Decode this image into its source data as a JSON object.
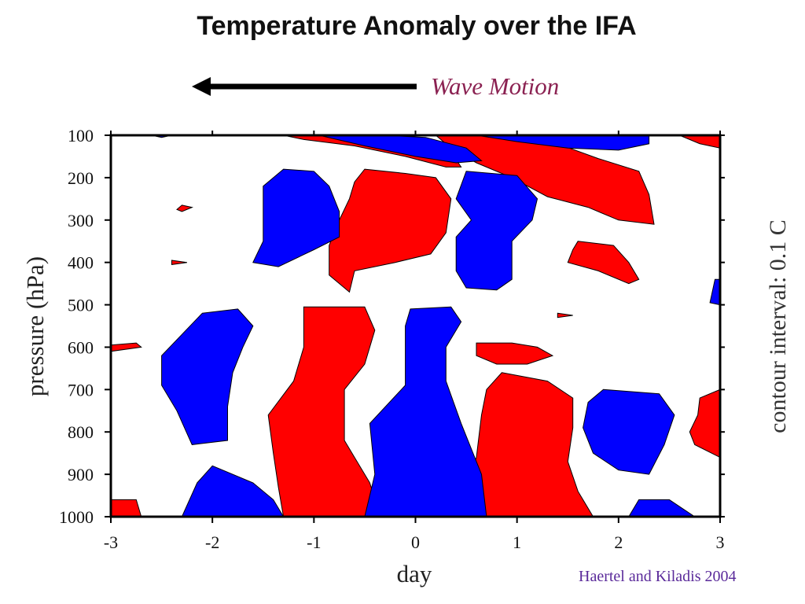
{
  "title": "Temperature Anomaly over the IFA",
  "annotation": {
    "wave_motion": "Wave Motion",
    "arrow_direction": "left"
  },
  "contour_interval": "contour interval: 0.1 C",
  "citation": "Haertel and Kiladis 2004",
  "colors": {
    "warm": "#ff0000",
    "cold": "#0000ff",
    "arrow": "#000000",
    "wave_text": "#8b2252",
    "citation": "#5a2a9a"
  },
  "chart_data": {
    "type": "heatmap",
    "title": "Temperature Anomaly over the IFA",
    "xlabel": "day",
    "ylabel": "pressure (hPa)",
    "xlim": [
      -3,
      3
    ],
    "ylim": [
      100,
      1000
    ],
    "y_inverted": true,
    "x_ticks": [
      "-3",
      "-2",
      "-1",
      "0",
      "1",
      "2",
      "3"
    ],
    "y_ticks": [
      "100",
      "200",
      "300",
      "400",
      "500",
      "600",
      "700",
      "800",
      "900",
      "1000"
    ],
    "contour_interval_C": 0.1,
    "legend": "none",
    "regions": [
      {
        "sign": "warm",
        "poly": [
          [
            -1.0,
            100
          ],
          [
            -0.5,
            105
          ],
          [
            0.0,
            115
          ],
          [
            0.35,
            140
          ],
          [
            0.45,
            175
          ],
          [
            0.3,
            175
          ],
          [
            -0.1,
            150
          ],
          [
            -0.6,
            125
          ],
          [
            -1.1,
            110
          ],
          [
            -1.3,
            100
          ]
        ]
      },
      {
        "sign": "warm",
        "poly": [
          [
            0.2,
            100
          ],
          [
            0.9,
            100
          ],
          [
            1.4,
            120
          ],
          [
            1.8,
            155
          ],
          [
            2.2,
            185
          ],
          [
            2.3,
            240
          ],
          [
            2.35,
            310
          ],
          [
            2.0,
            300
          ],
          [
            1.7,
            270
          ],
          [
            1.3,
            245
          ],
          [
            0.95,
            200
          ],
          [
            0.6,
            165
          ],
          [
            0.35,
            130
          ]
        ]
      },
      {
        "sign": "warm",
        "poly": [
          [
            2.6,
            100
          ],
          [
            3.0,
            100
          ],
          [
            3.0,
            130
          ],
          [
            2.8,
            120
          ]
        ]
      },
      {
        "sign": "warm",
        "poly": [
          [
            -0.5,
            180
          ],
          [
            -0.1,
            190
          ],
          [
            0.2,
            200
          ],
          [
            0.35,
            250
          ],
          [
            0.3,
            330
          ],
          [
            0.15,
            380
          ],
          [
            -0.2,
            400
          ],
          [
            -0.6,
            420
          ],
          [
            -0.65,
            470
          ],
          [
            -0.7,
            460
          ],
          [
            -0.85,
            430
          ],
          [
            -0.85,
            360
          ],
          [
            -0.75,
            300
          ],
          [
            -0.65,
            250
          ],
          [
            -0.6,
            210
          ]
        ]
      },
      {
        "sign": "warm",
        "poly": [
          [
            1.6,
            350
          ],
          [
            1.95,
            360
          ],
          [
            2.1,
            400
          ],
          [
            2.2,
            440
          ],
          [
            2.1,
            450
          ],
          [
            1.8,
            420
          ],
          [
            1.5,
            400
          ],
          [
            1.55,
            370
          ]
        ]
      },
      {
        "sign": "warm",
        "poly": [
          [
            -2.3,
            265
          ],
          [
            -2.2,
            270
          ],
          [
            -2.3,
            280
          ],
          [
            -2.35,
            275
          ]
        ]
      },
      {
        "sign": "warm",
        "poly": [
          [
            -2.4,
            395
          ],
          [
            -2.25,
            400
          ],
          [
            -2.4,
            405
          ]
        ]
      },
      {
        "sign": "warm",
        "poly": [
          [
            -1.1,
            505
          ],
          [
            -0.5,
            505
          ],
          [
            -0.4,
            560
          ],
          [
            -0.5,
            640
          ],
          [
            -0.7,
            700
          ],
          [
            -0.7,
            820
          ],
          [
            -0.6,
            860
          ],
          [
            -0.45,
            920
          ],
          [
            -0.35,
            1000
          ],
          [
            -1.3,
            1000
          ],
          [
            -1.35,
            930
          ],
          [
            -1.4,
            850
          ],
          [
            -1.45,
            760
          ],
          [
            -1.2,
            680
          ],
          [
            -1.1,
            600
          ]
        ]
      },
      {
        "sign": "warm",
        "poly": [
          [
            0.6,
            590
          ],
          [
            0.95,
            590
          ],
          [
            1.2,
            600
          ],
          [
            1.35,
            620
          ],
          [
            1.1,
            640
          ],
          [
            0.8,
            640
          ],
          [
            0.6,
            620
          ]
        ]
      },
      {
        "sign": "warm",
        "poly": [
          [
            0.85,
            660
          ],
          [
            1.3,
            680
          ],
          [
            1.55,
            720
          ],
          [
            1.55,
            790
          ],
          [
            1.5,
            870
          ],
          [
            1.6,
            940
          ],
          [
            1.75,
            1000
          ],
          [
            0.5,
            1000
          ],
          [
            0.5,
            930
          ],
          [
            0.6,
            860
          ],
          [
            0.65,
            760
          ],
          [
            0.7,
            700
          ]
        ]
      },
      {
        "sign": "warm",
        "poly": [
          [
            1.4,
            520
          ],
          [
            1.55,
            525
          ],
          [
            1.4,
            530
          ]
        ]
      },
      {
        "sign": "warm",
        "poly": [
          [
            2.8,
            720
          ],
          [
            3.0,
            700
          ],
          [
            3.0,
            860
          ],
          [
            2.75,
            830
          ],
          [
            2.7,
            800
          ],
          [
            2.78,
            760
          ]
        ]
      },
      {
        "sign": "warm",
        "poly": [
          [
            -3.0,
            595
          ],
          [
            -2.75,
            590
          ],
          [
            -2.7,
            600
          ],
          [
            -3.0,
            610
          ]
        ]
      },
      {
        "sign": "warm",
        "poly": [
          [
            -3.0,
            960
          ],
          [
            -2.75,
            960
          ],
          [
            -2.7,
            1000
          ],
          [
            -3.0,
            1000
          ]
        ]
      },
      {
        "sign": "cold",
        "poly": [
          [
            -0.95,
            100
          ],
          [
            -0.3,
            100
          ],
          [
            0.1,
            105
          ],
          [
            0.5,
            130
          ],
          [
            0.65,
            160
          ],
          [
            0.4,
            165
          ],
          [
            0.0,
            150
          ],
          [
            -0.5,
            125
          ]
        ]
      },
      {
        "sign": "cold",
        "poly": [
          [
            0.6,
            100
          ],
          [
            2.3,
            100
          ],
          [
            2.3,
            120
          ],
          [
            2.0,
            135
          ],
          [
            1.5,
            130
          ],
          [
            1.0,
            115
          ]
        ]
      },
      {
        "sign": "cold",
        "poly": [
          [
            -2.6,
            100
          ],
          [
            -2.4,
            100
          ],
          [
            -2.5,
            105
          ]
        ]
      },
      {
        "sign": "cold",
        "poly": [
          [
            -1.3,
            180
          ],
          [
            -1.0,
            185
          ],
          [
            -0.85,
            220
          ],
          [
            -0.75,
            280
          ],
          [
            -0.75,
            340
          ],
          [
            -1.0,
            370
          ],
          [
            -1.35,
            410
          ],
          [
            -1.6,
            400
          ],
          [
            -1.5,
            350
          ],
          [
            -1.5,
            280
          ],
          [
            -1.5,
            220
          ]
        ]
      },
      {
        "sign": "cold",
        "poly": [
          [
            0.5,
            185
          ],
          [
            1.0,
            195
          ],
          [
            1.2,
            250
          ],
          [
            1.15,
            300
          ],
          [
            0.95,
            350
          ],
          [
            0.95,
            440
          ],
          [
            0.8,
            465
          ],
          [
            0.5,
            460
          ],
          [
            0.4,
            420
          ],
          [
            0.4,
            340
          ],
          [
            0.55,
            300
          ],
          [
            0.4,
            250
          ]
        ]
      },
      {
        "sign": "cold",
        "poly": [
          [
            -2.1,
            520
          ],
          [
            -1.75,
            510
          ],
          [
            -1.6,
            550
          ],
          [
            -1.7,
            600
          ],
          [
            -1.8,
            660
          ],
          [
            -1.85,
            740
          ],
          [
            -1.85,
            820
          ],
          [
            -2.2,
            830
          ],
          [
            -2.35,
            750
          ],
          [
            -2.5,
            690
          ],
          [
            -2.5,
            620
          ],
          [
            -2.3,
            570
          ]
        ]
      },
      {
        "sign": "cold",
        "poly": [
          [
            -0.05,
            510
          ],
          [
            0.35,
            505
          ],
          [
            0.45,
            540
          ],
          [
            0.3,
            600
          ],
          [
            0.3,
            680
          ],
          [
            0.45,
            780
          ],
          [
            0.65,
            900
          ],
          [
            0.7,
            1000
          ],
          [
            -0.5,
            1000
          ],
          [
            -0.4,
            900
          ],
          [
            -0.45,
            780
          ],
          [
            -0.1,
            690
          ],
          [
            -0.1,
            600
          ],
          [
            -0.1,
            550
          ]
        ]
      },
      {
        "sign": "cold",
        "poly": [
          [
            1.85,
            700
          ],
          [
            2.4,
            710
          ],
          [
            2.55,
            760
          ],
          [
            2.45,
            830
          ],
          [
            2.3,
            900
          ],
          [
            2.0,
            890
          ],
          [
            1.75,
            850
          ],
          [
            1.65,
            790
          ],
          [
            1.7,
            730
          ]
        ]
      },
      {
        "sign": "cold",
        "poly": [
          [
            -2.0,
            880
          ],
          [
            -1.6,
            920
          ],
          [
            -1.4,
            960
          ],
          [
            -1.3,
            1000
          ],
          [
            -2.3,
            1000
          ],
          [
            -2.15,
            920
          ]
        ]
      },
      {
        "sign": "cold",
        "poly": [
          [
            2.2,
            960
          ],
          [
            2.5,
            960
          ],
          [
            2.75,
            1000
          ],
          [
            2.1,
            1000
          ]
        ]
      },
      {
        "sign": "cold",
        "poly": [
          [
            2.95,
            440
          ],
          [
            3.0,
            440
          ],
          [
            3.0,
            500
          ],
          [
            2.9,
            495
          ]
        ]
      }
    ]
  }
}
